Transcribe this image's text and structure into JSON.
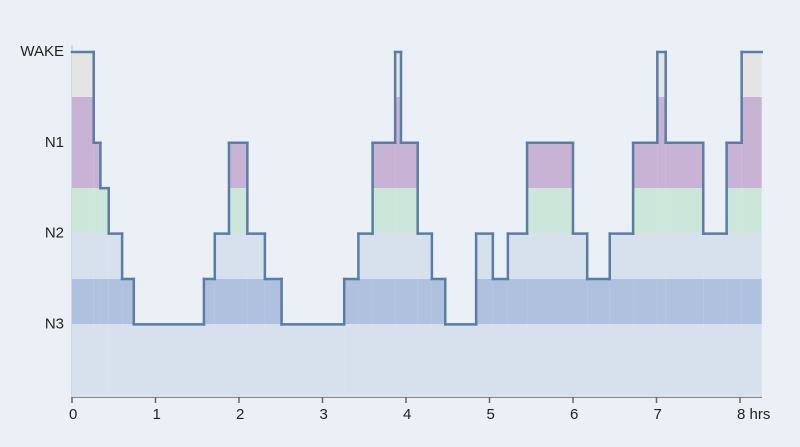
{
  "chart_data": {
    "type": "step",
    "x": [
      0,
      0.26,
      0.34,
      0.44,
      0.6,
      0.74,
      1.58,
      1.71,
      1.88,
      2.1,
      2.31,
      2.51,
      3.26,
      3.43,
      3.6,
      3.87,
      3.94,
      4.14,
      4.31,
      4.47,
      4.84,
      5.04,
      5.22,
      5.45,
      6.0,
      6.17,
      6.44,
      6.72,
      7.01,
      7.11,
      7.56,
      7.84,
      8.02
    ],
    "values": [
      3,
      2,
      1.5,
      1,
      0.5,
      0,
      0.5,
      1,
      2,
      1,
      0.5,
      0,
      0.5,
      1,
      2,
      3,
      2,
      1,
      0.5,
      0,
      1,
      0.5,
      1,
      2,
      1,
      0.5,
      1,
      2,
      3,
      2,
      1,
      2,
      3
    ],
    "color": "#5a7ca5",
    "xlim": [
      0,
      8.26
    ],
    "xticks": [
      0,
      1,
      2,
      3,
      4,
      5,
      6,
      7,
      {
        "value": 8,
        "label": "8 hrs"
      }
    ],
    "ylim": [
      -0.8,
      3
    ],
    "yticks": [
      {
        "value": 0,
        "label": "N3"
      },
      {
        "value": 1,
        "label": "N2"
      },
      {
        "value": 2,
        "label": "N1"
      },
      {
        "value": 3,
        "label": "WAKE"
      }
    ]
  }
}
